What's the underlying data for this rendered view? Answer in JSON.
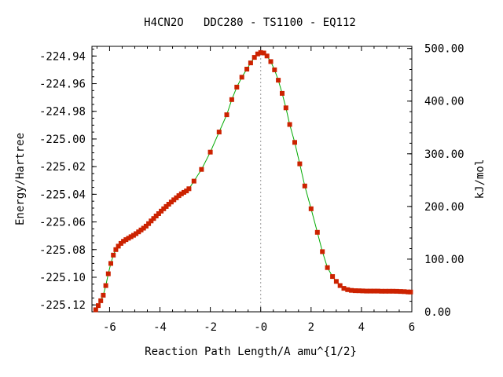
{
  "chart_data": {
    "type": "line",
    "title": "H4CN2O   DDC280 - TS1100 - EQ112",
    "xlabel": "Reaction Path Length/A amu^{1/2}",
    "ylabel": "Energy/Hartree",
    "y2label": "kJ/mol",
    "xlim": [
      -6.7,
      6
    ],
    "ylim": [
      -225.125,
      -224.933
    ],
    "y2lim": [
      0,
      504
    ],
    "x_ticks": [
      -6,
      -4,
      -2,
      0,
      2,
      4,
      6
    ],
    "x_tick_labels": [
      "-6",
      "-4",
      "-2",
      "-0",
      "2",
      "4",
      "6"
    ],
    "y_ticks": [
      -224.94,
      -224.96,
      -224.98,
      -225.0,
      -225.02,
      -225.04,
      -225.06,
      -225.08,
      -225.1,
      -225.12
    ],
    "y_tick_labels": [
      "-224.94",
      "-224.96",
      "-224.98",
      "-225.00",
      "-225.02",
      "-225.04",
      "-225.06",
      "-225.08",
      "-225.10",
      "-225.12"
    ],
    "y2_ticks": [
      0,
      100,
      200,
      300,
      400,
      500
    ],
    "y2_tick_labels": [
      "0.00",
      "100.00",
      "200.00",
      "300.00",
      "400.00",
      "500.00"
    ],
    "reference_line_x": 0,
    "grid": false,
    "line_color": "#00aa00",
    "marker_color": "#cc2200",
    "points": [
      [
        -6.55,
        -225.1235
      ],
      [
        -6.45,
        -225.1205
      ],
      [
        -6.35,
        -225.117
      ],
      [
        -6.25,
        -225.113
      ],
      [
        -6.15,
        -225.106
      ],
      [
        -6.05,
        -225.0975
      ],
      [
        -5.95,
        -225.09
      ],
      [
        -5.85,
        -225.084
      ],
      [
        -5.75,
        -225.08
      ],
      [
        -5.65,
        -225.0775
      ],
      [
        -5.55,
        -225.0755
      ],
      [
        -5.45,
        -225.074
      ],
      [
        -5.35,
        -225.0728
      ],
      [
        -5.25,
        -225.0718
      ],
      [
        -5.15,
        -225.0707
      ],
      [
        -5.05,
        -225.0697
      ],
      [
        -4.95,
        -225.0685
      ],
      [
        -4.85,
        -225.0672
      ],
      [
        -4.75,
        -225.0658
      ],
      [
        -4.65,
        -225.0645
      ],
      [
        -4.55,
        -225.063
      ],
      [
        -4.45,
        -225.0612
      ],
      [
        -4.35,
        -225.0593
      ],
      [
        -4.25,
        -225.0575
      ],
      [
        -4.15,
        -225.0557
      ],
      [
        -4.05,
        -225.054
      ],
      [
        -3.95,
        -225.0522
      ],
      [
        -3.85,
        -225.0505
      ],
      [
        -3.75,
        -225.0488
      ],
      [
        -3.65,
        -225.0472
      ],
      [
        -3.55,
        -225.0456
      ],
      [
        -3.45,
        -225.044
      ],
      [
        -3.35,
        -225.0425
      ],
      [
        -3.25,
        -225.041
      ],
      [
        -3.15,
        -225.0397
      ],
      [
        -3.05,
        -225.0386
      ],
      [
        -2.95,
        -225.0376
      ],
      [
        -2.85,
        -225.036
      ],
      [
        -2.65,
        -225.0305
      ],
      [
        -2.35,
        -225.022
      ],
      [
        -2.0,
        -225.0095
      ],
      [
        -1.65,
        -224.995
      ],
      [
        -1.35,
        -224.9825
      ],
      [
        -1.15,
        -224.9715
      ],
      [
        -0.95,
        -224.9625
      ],
      [
        -0.75,
        -224.9553
      ],
      [
        -0.55,
        -224.9495
      ],
      [
        -0.4,
        -224.945
      ],
      [
        -0.25,
        -224.941
      ],
      [
        -0.12,
        -224.9385
      ],
      [
        0.0,
        -224.9375
      ],
      [
        0.12,
        -224.9378
      ],
      [
        0.25,
        -224.94
      ],
      [
        0.4,
        -224.944
      ],
      [
        0.55,
        -224.95
      ],
      [
        0.7,
        -224.9575
      ],
      [
        0.85,
        -224.967
      ],
      [
        1.0,
        -224.9775
      ],
      [
        1.15,
        -224.9895
      ],
      [
        1.35,
        -225.0025
      ],
      [
        1.55,
        -225.018
      ],
      [
        1.75,
        -225.034
      ],
      [
        2.0,
        -225.0505
      ],
      [
        2.25,
        -225.0675
      ],
      [
        2.45,
        -225.0815
      ],
      [
        2.65,
        -225.093
      ],
      [
        2.85,
        -225.0995
      ],
      [
        3.0,
        -225.103
      ],
      [
        3.15,
        -225.106
      ],
      [
        3.3,
        -225.108
      ],
      [
        3.45,
        -225.109
      ],
      [
        3.6,
        -225.1095
      ],
      [
        3.75,
        -225.1097
      ],
      [
        3.9,
        -225.1098
      ],
      [
        4.05,
        -225.1099
      ],
      [
        4.2,
        -225.11
      ],
      [
        4.35,
        -225.11
      ],
      [
        4.5,
        -225.11
      ],
      [
        4.65,
        -225.11
      ],
      [
        4.8,
        -225.1101
      ],
      [
        4.95,
        -225.1101
      ],
      [
        5.1,
        -225.1101
      ],
      [
        5.25,
        -225.1101
      ],
      [
        5.4,
        -225.1102
      ],
      [
        5.55,
        -225.1103
      ],
      [
        5.7,
        -225.1104
      ],
      [
        5.85,
        -225.1106
      ],
      [
        5.95,
        -225.1107
      ]
    ]
  }
}
